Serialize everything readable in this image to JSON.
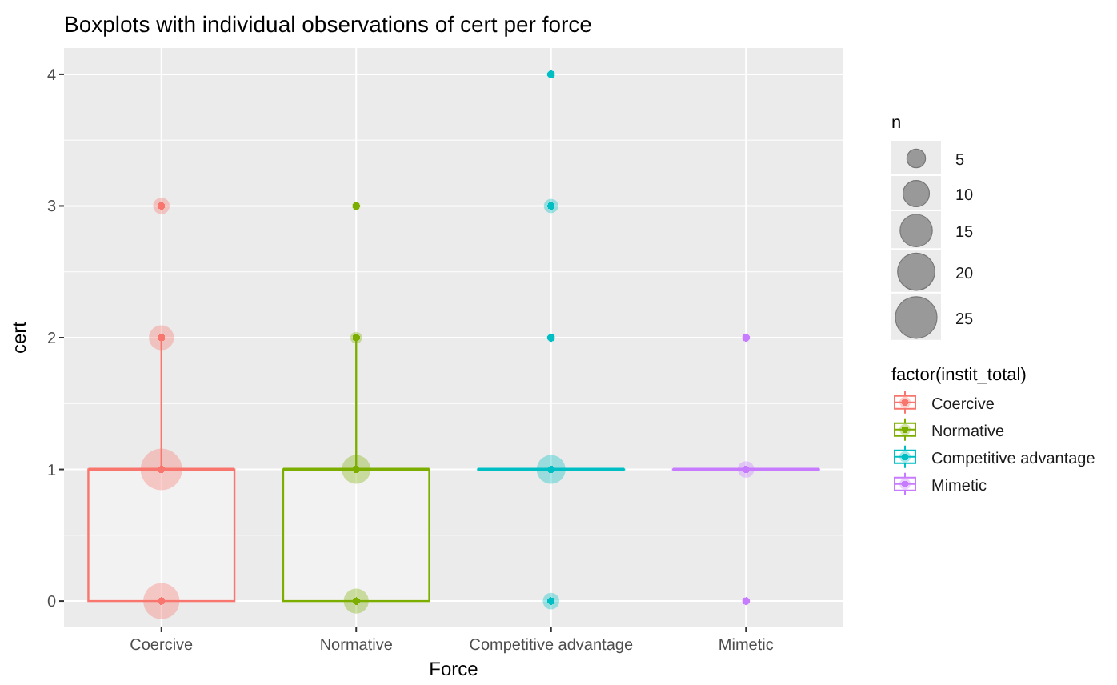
{
  "chart_data": {
    "type": "box",
    "title": "Boxplots with individual observations of cert per force",
    "xlabel": "Force",
    "ylabel": "cert",
    "categories": [
      "Coercive",
      "Normative",
      "Competitive advantage",
      "Mimetic"
    ],
    "colors": [
      "#f8766d",
      "#7cae00",
      "#00bfc4",
      "#c77cff"
    ],
    "boxes": [
      {
        "low": 0,
        "q1": 0,
        "median": 1,
        "q3": 1,
        "high": 2
      },
      {
        "low": 0,
        "q1": 0,
        "median": 1,
        "q3": 1,
        "high": 2
      },
      {
        "low": 1,
        "q1": 1,
        "median": 1,
        "q3": 1,
        "high": 1
      },
      {
        "low": 1,
        "q1": 1,
        "median": 1,
        "q3": 1,
        "high": 1
      }
    ],
    "ylim": [
      -0.2,
      4.2
    ],
    "yticks": [
      0,
      1,
      2,
      3,
      4
    ],
    "grid": true,
    "legend": "right",
    "legend_title": "factor(instit_total)",
    "size_legend": [
      5,
      10,
      15,
      20,
      25
    ],
    "annotations": [
      "n"
    ],
    "series": [
      {
        "name": "Coercive",
        "type": "bubble",
        "color": "#f8766d",
        "x": [
          "Coercive",
          "Coercive",
          "Coercive",
          "Coercive"
        ],
        "values": [
          0,
          1,
          2,
          3
        ],
        "sizes": [
          19,
          25,
          9,
          4
        ]
      },
      {
        "name": "Normative",
        "type": "bubble",
        "color": "#7cae00",
        "x": [
          "Normative",
          "Normative",
          "Normative",
          "Normative"
        ],
        "values": [
          0,
          1,
          2,
          3
        ],
        "sizes": [
          9,
          12,
          2,
          1
        ]
      },
      {
        "name": "Competitive advantage",
        "type": "bubble",
        "color": "#00bfc4",
        "x": [
          "Competitive advantage",
          "Competitive advantage",
          "Competitive advantage",
          "Competitive advantage",
          "Competitive advantage"
        ],
        "values": [
          0,
          1,
          2,
          3,
          4
        ],
        "sizes": [
          4,
          12,
          1,
          3,
          1
        ]
      },
      {
        "name": "Mimetic",
        "type": "bubble",
        "color": "#c77cff",
        "x": [
          "Mimetic",
          "Mimetic",
          "Mimetic"
        ],
        "values": [
          0,
          1,
          2
        ],
        "sizes": [
          1,
          4,
          1
        ]
      }
    ]
  }
}
